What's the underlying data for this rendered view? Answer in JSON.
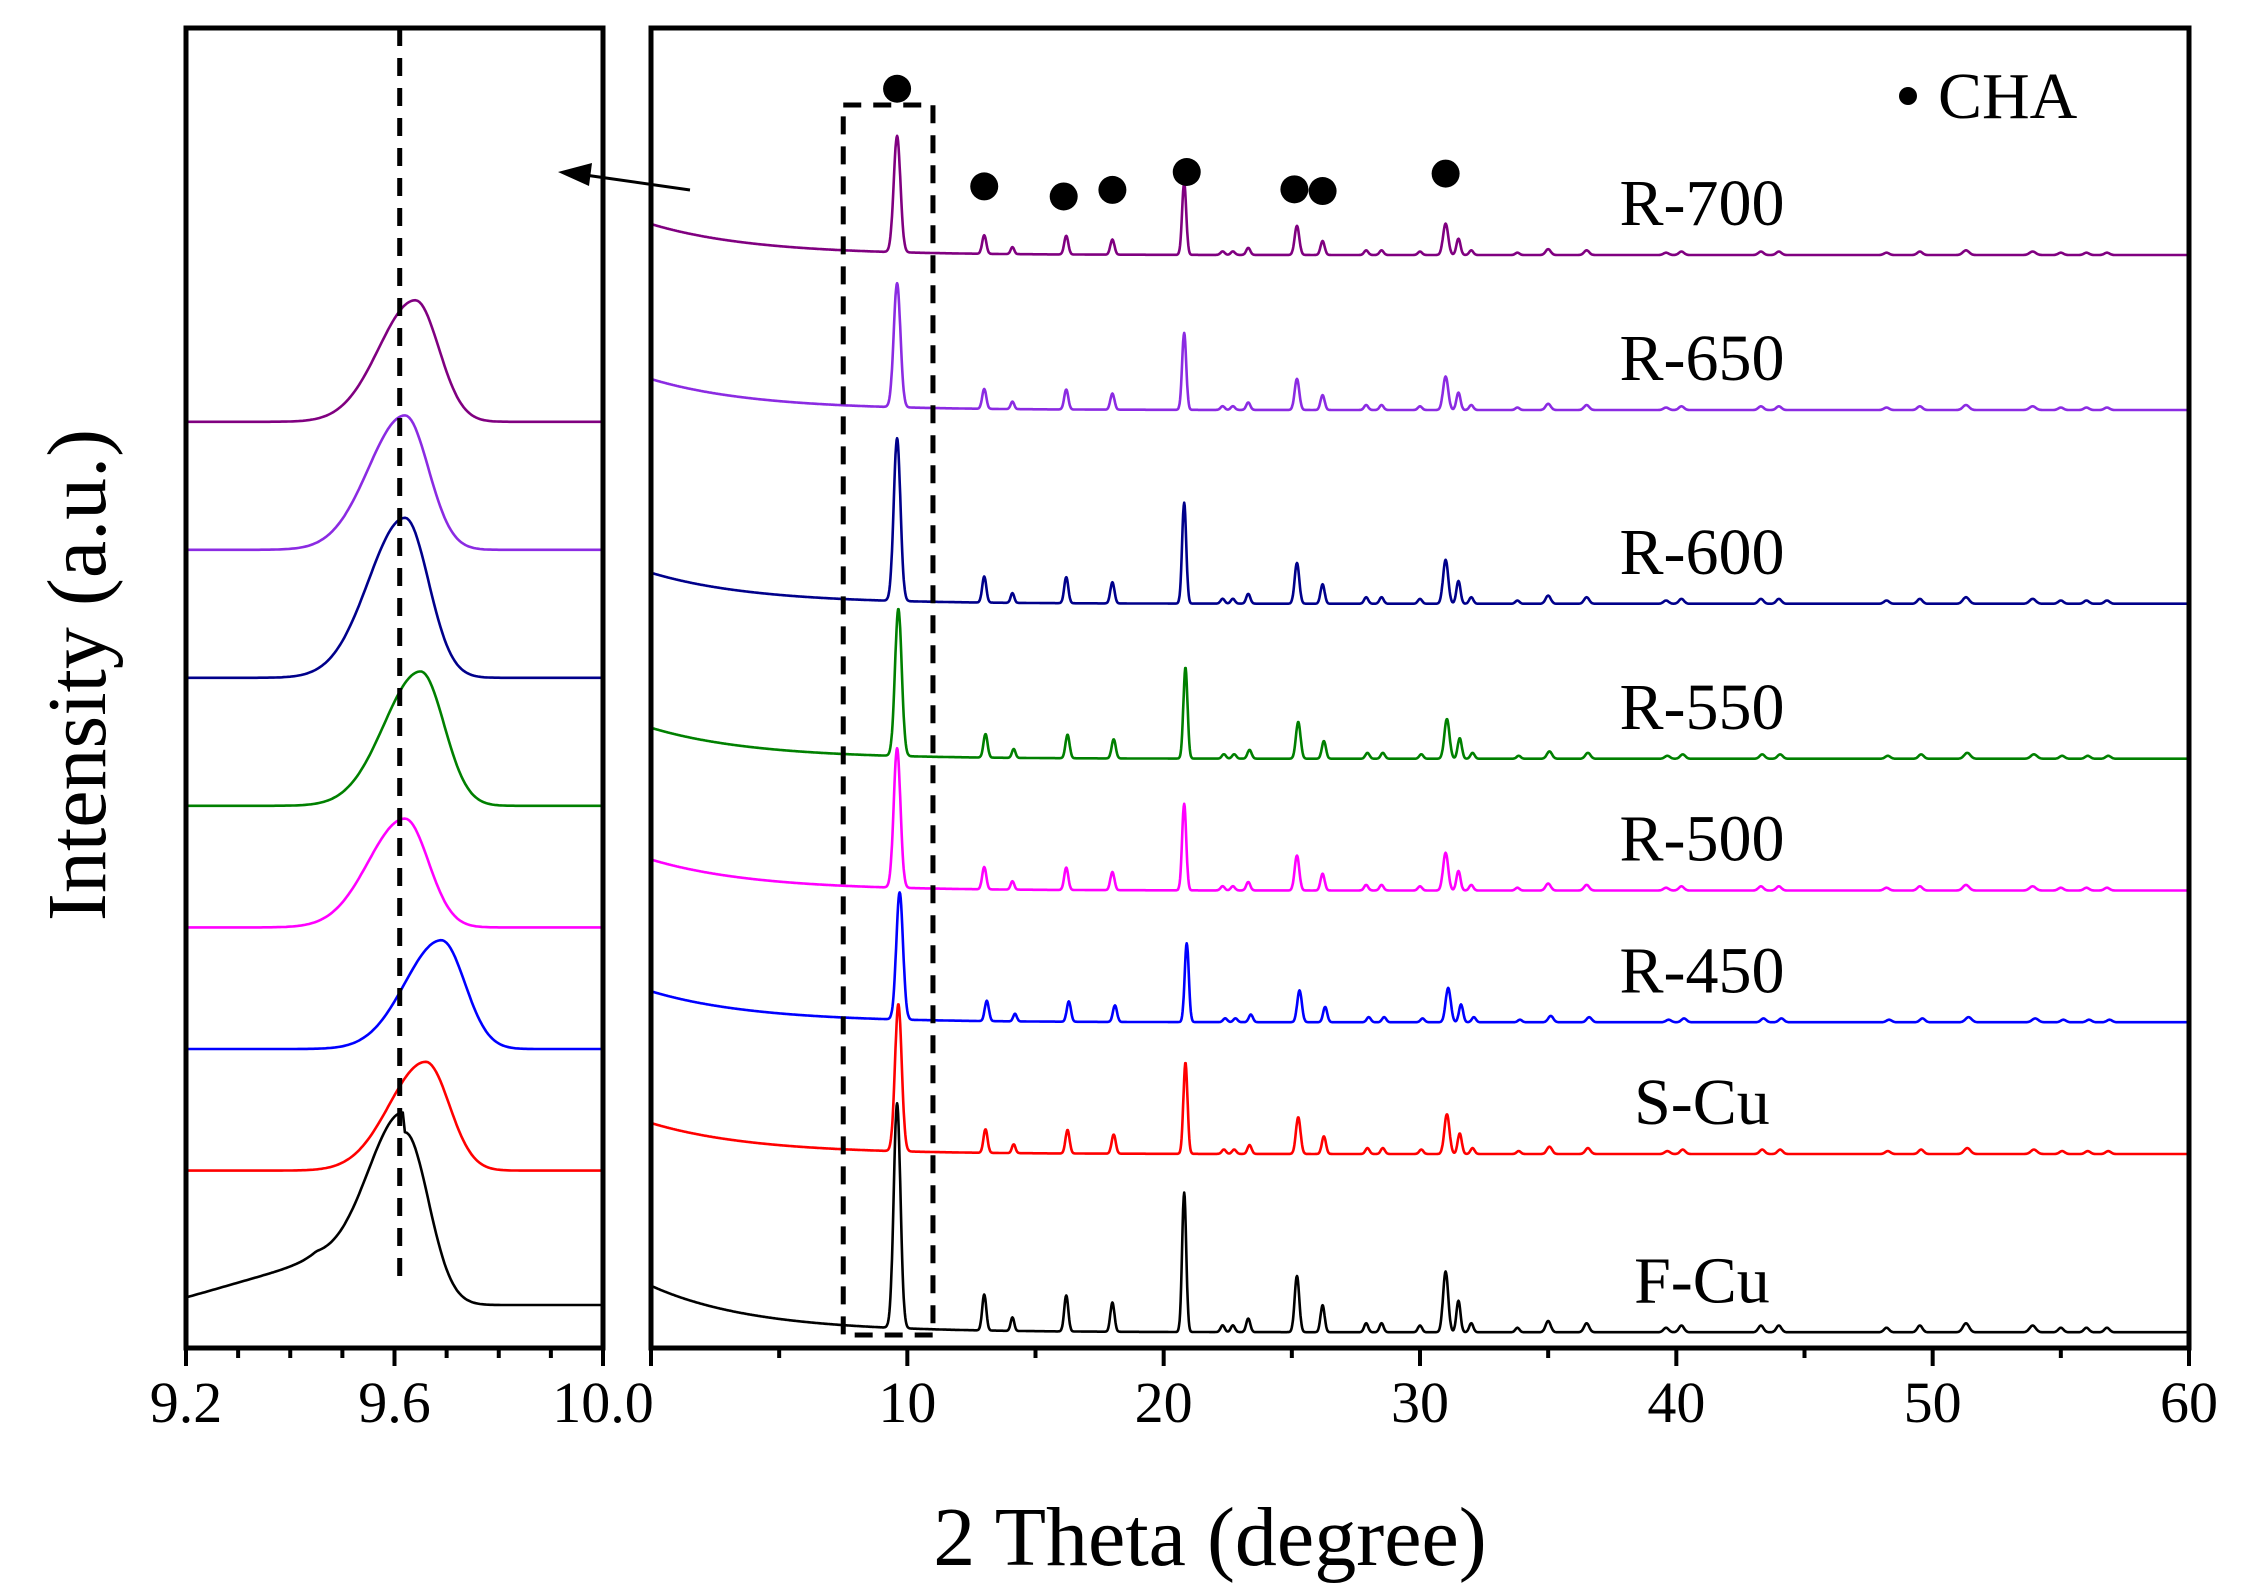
{
  "chart_data": [
    {
      "type": "line",
      "panel": "inset",
      "xlim": [
        9.2,
        10.0
      ],
      "x_ticks": [
        9.2,
        9.6,
        10.0
      ],
      "x_tick_labels": [
        "9.2",
        "9.6",
        "10.0"
      ],
      "ylabel": "Intensity (a.u.)",
      "reference_line_x": 9.61,
      "series": [
        {
          "name": "R-700",
          "color": "#800080",
          "peak_x": 9.64,
          "baseline": 7.2,
          "peak_height": 0.95
        },
        {
          "name": "R-650",
          "color": "#8b2be2",
          "peak_x": 9.62,
          "baseline": 6.2,
          "peak_height": 1.05
        },
        {
          "name": "R-600",
          "color": "#00008b",
          "peak_x": 9.62,
          "baseline": 5.2,
          "peak_height": 1.25
        },
        {
          "name": "R-550",
          "color": "#008000",
          "peak_x": 9.65,
          "baseline": 4.2,
          "peak_height": 1.05
        },
        {
          "name": "R-500",
          "color": "#ff00ff",
          "peak_x": 9.62,
          "baseline": 3.25,
          "peak_height": 0.85
        },
        {
          "name": "R-450",
          "color": "#0000ff",
          "peak_x": 9.69,
          "baseline": 2.3,
          "peak_height": 0.85
        },
        {
          "name": "S-Cu",
          "color": "#ff0000",
          "peak_x": 9.66,
          "baseline": 1.35,
          "peak_height": 0.85
        },
        {
          "name": "F-Cu",
          "color": "#000000",
          "peak_x": 9.62,
          "baseline": 0.3,
          "peak_height": 1.35
        }
      ]
    },
    {
      "type": "line",
      "panel": "main",
      "xlim": [
        0,
        60
      ],
      "x_ticks": [
        0,
        10,
        20,
        30,
        40,
        50,
        60
      ],
      "x_tick_labels": [
        "10",
        "20",
        "30",
        "40",
        "50",
        "60"
      ],
      "xlabel": "2 Theta (degree)",
      "legend": {
        "marker": "circle",
        "label": "CHA",
        "position": "top-right"
      },
      "cha_markers_x": [
        9.6,
        13.0,
        16.1,
        18.0,
        20.9,
        25.1,
        26.2,
        31.0
      ],
      "zoom_box": {
        "x_range": [
          7.5,
          11.0
        ]
      },
      "peaks": [
        {
          "x": 9.6,
          "h": 1.0,
          "w": 0.13
        },
        {
          "x": 13.0,
          "h": 0.16,
          "w": 0.08
        },
        {
          "x": 14.1,
          "h": 0.06,
          "w": 0.07
        },
        {
          "x": 16.2,
          "h": 0.16,
          "w": 0.08
        },
        {
          "x": 18.0,
          "h": 0.13,
          "w": 0.08
        },
        {
          "x": 20.8,
          "h": 0.62,
          "w": 0.08
        },
        {
          "x": 22.3,
          "h": 0.03,
          "w": 0.08
        },
        {
          "x": 22.7,
          "h": 0.03,
          "w": 0.08
        },
        {
          "x": 23.3,
          "h": 0.06,
          "w": 0.08
        },
        {
          "x": 25.2,
          "h": 0.25,
          "w": 0.09
        },
        {
          "x": 26.2,
          "h": 0.12,
          "w": 0.08
        },
        {
          "x": 27.9,
          "h": 0.04,
          "w": 0.08
        },
        {
          "x": 28.5,
          "h": 0.04,
          "w": 0.08
        },
        {
          "x": 30.0,
          "h": 0.03,
          "w": 0.08
        },
        {
          "x": 31.0,
          "h": 0.27,
          "w": 0.1
        },
        {
          "x": 31.5,
          "h": 0.14,
          "w": 0.08
        },
        {
          "x": 32.0,
          "h": 0.04,
          "w": 0.08
        },
        {
          "x": 33.8,
          "h": 0.02,
          "w": 0.08
        },
        {
          "x": 35.0,
          "h": 0.05,
          "w": 0.1
        },
        {
          "x": 36.5,
          "h": 0.04,
          "w": 0.1
        },
        {
          "x": 39.6,
          "h": 0.02,
          "w": 0.1
        },
        {
          "x": 40.2,
          "h": 0.03,
          "w": 0.1
        },
        {
          "x": 43.3,
          "h": 0.03,
          "w": 0.1
        },
        {
          "x": 44.0,
          "h": 0.03,
          "w": 0.1
        },
        {
          "x": 48.2,
          "h": 0.02,
          "w": 0.1
        },
        {
          "x": 49.5,
          "h": 0.03,
          "w": 0.1
        },
        {
          "x": 51.3,
          "h": 0.04,
          "w": 0.12
        },
        {
          "x": 53.9,
          "h": 0.03,
          "w": 0.12
        },
        {
          "x": 55.0,
          "h": 0.02,
          "w": 0.1
        },
        {
          "x": 56.0,
          "h": 0.02,
          "w": 0.1
        },
        {
          "x": 56.8,
          "h": 0.02,
          "w": 0.1
        }
      ],
      "series": [
        {
          "name": "R-700",
          "color": "#800080",
          "baseline": 7.0,
          "scale": 0.75,
          "shift": 0.0
        },
        {
          "name": "R-650",
          "color": "#8b2be2",
          "baseline": 6.0,
          "scale": 0.8,
          "shift": 0.0
        },
        {
          "name": "R-600",
          "color": "#00008b",
          "baseline": 4.75,
          "scale": 1.05,
          "shift": 0.0
        },
        {
          "name": "R-550",
          "color": "#008000",
          "baseline": 3.75,
          "scale": 0.95,
          "shift": 0.05
        },
        {
          "name": "R-500",
          "color": "#ff00ff",
          "baseline": 2.9,
          "scale": 0.9,
          "shift": 0.0
        },
        {
          "name": "R-450",
          "color": "#0000ff",
          "baseline": 2.05,
          "scale": 0.82,
          "shift": 0.1
        },
        {
          "name": "S-Cu",
          "color": "#ff0000",
          "baseline": 1.2,
          "scale": 0.95,
          "shift": 0.05
        },
        {
          "name": "F-Cu",
          "color": "#000000",
          "baseline": 0.05,
          "scale": 1.45,
          "shift": 0.0
        }
      ]
    }
  ]
}
